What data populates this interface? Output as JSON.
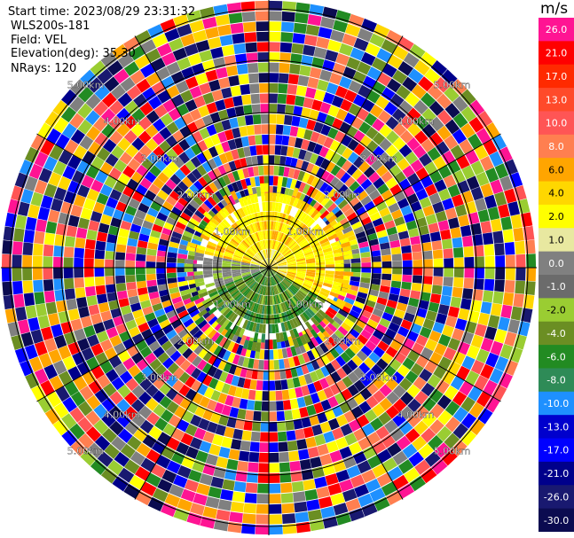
{
  "info": {
    "start_time": "Start time: 2023/08/29 23:31:32",
    "instrument": "WLS200s-181",
    "field": "Field: VEL",
    "elevation": "Elevation(deg): 35.30",
    "nrays": "NRays: 120"
  },
  "colorbar": {
    "unit": "m/s",
    "ticks": [
      "26.0",
      "21.0",
      "17.0",
      "13.0",
      "10.0",
      "8.0",
      "6.0",
      "4.0",
      "2.0",
      "1.0",
      "0.0",
      "-1.0",
      "-2.0",
      "-4.0",
      "-6.0",
      "-8.0",
      "-10.0",
      "-13.0",
      "-17.0",
      "-21.0",
      "-26.0",
      "-30.0"
    ],
    "colors": [
      "#ff1493",
      "#ff0000",
      "#ff2a00",
      "#ff4a2a",
      "#ff5555",
      "#ff7f50",
      "#ffa500",
      "#ffd700",
      "#ffff00",
      "#e8e8a0",
      "#808080",
      "#6b6b6b",
      "#9acd32",
      "#6b8e23",
      "#228b22",
      "#2e8b57",
      "#1e90ff",
      "#0000cd",
      "#0000ff",
      "#00008b",
      "#191970",
      "#0b0b50"
    ]
  },
  "range_rings": {
    "labels": [
      "1.00km",
      "2.00km",
      "3.00km",
      "4.00km",
      "5.00km"
    ]
  }
}
